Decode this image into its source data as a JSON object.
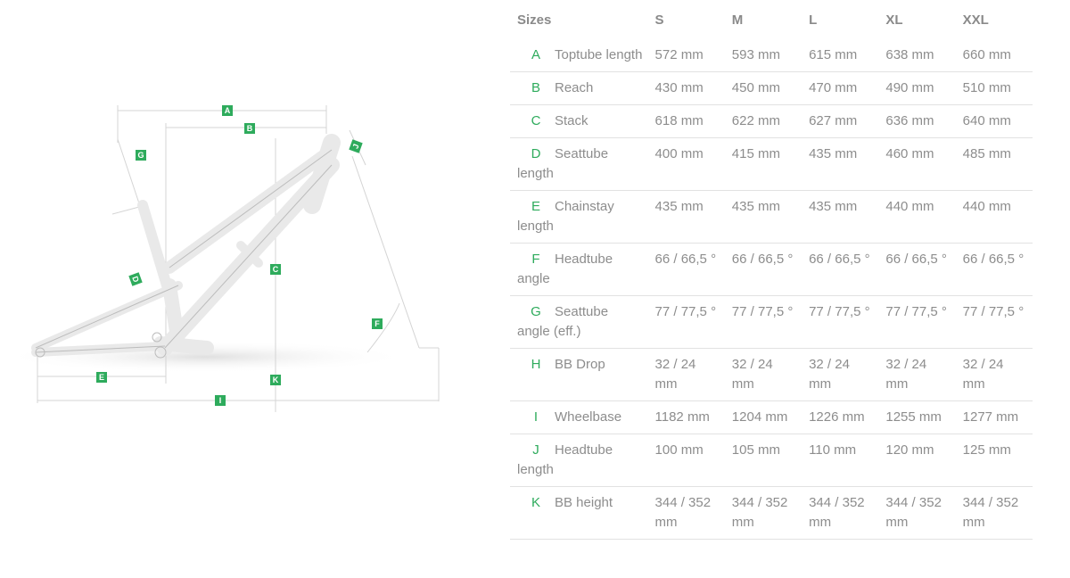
{
  "table": {
    "header": {
      "label": "Sizes",
      "sizes": [
        "S",
        "M",
        "L",
        "XL",
        "XXL"
      ]
    },
    "rows": [
      {
        "letter": "A",
        "name": "Toptube length",
        "values": [
          "572 mm",
          "593 mm",
          "615 mm",
          "638 mm",
          "660 mm"
        ]
      },
      {
        "letter": "B",
        "name": "Reach",
        "values": [
          "430 mm",
          "450 mm",
          "470 mm",
          "490 mm",
          "510 mm"
        ]
      },
      {
        "letter": "C",
        "name": "Stack",
        "values": [
          "618 mm",
          "622 mm",
          "627 mm",
          "636 mm",
          "640 mm"
        ]
      },
      {
        "letter": "D",
        "name": "Seattube length",
        "values": [
          "400 mm",
          "415 mm",
          "435 mm",
          "460 mm",
          "485 mm"
        ]
      },
      {
        "letter": "E",
        "name": "Chainstay length",
        "values": [
          "435 mm",
          "435 mm",
          "435 mm",
          "440 mm",
          "440 mm"
        ]
      },
      {
        "letter": "F",
        "name": "Headtube angle",
        "values": [
          "66 / 66,5 °",
          "66 / 66,5 °",
          "66 / 66,5 °",
          "66 / 66,5 °",
          "66 / 66,5 °"
        ]
      },
      {
        "letter": "G",
        "name": "Seattube angle (eff.)",
        "values": [
          "77 / 77,5 °",
          "77 / 77,5 °",
          "77 / 77,5 °",
          "77 / 77,5 °",
          "77 / 77,5 °"
        ]
      },
      {
        "letter": "H",
        "name": "BB Drop",
        "values": [
          "32 / 24 mm",
          "32 / 24 mm",
          "32 / 24 mm",
          "32 / 24 mm",
          "32 / 24 mm"
        ]
      },
      {
        "letter": "I",
        "name": "Wheelbase",
        "values": [
          "1182 mm",
          "1204 mm",
          "1226 mm",
          "1255 mm",
          "1277 mm"
        ]
      },
      {
        "letter": "J",
        "name": "Headtube length",
        "values": [
          "100 mm",
          "105 mm",
          "110 mm",
          "120 mm",
          "125 mm"
        ]
      },
      {
        "letter": "K",
        "name": "BB height",
        "values": [
          "344 / 352 mm",
          "344 / 352 mm",
          "344 / 352 mm",
          "344 / 352 mm",
          "344 / 352 mm"
        ]
      }
    ]
  },
  "diagram": {
    "tags": {
      "A": "A",
      "B": "B",
      "C": "C",
      "D": "D",
      "E": "E",
      "F": "F",
      "G": "G",
      "I": "I",
      "J": "J",
      "K": "K"
    }
  },
  "colors": {
    "accent": "#2eab5c",
    "text": "#8a8a8a",
    "divider": "#e2e2e2"
  }
}
